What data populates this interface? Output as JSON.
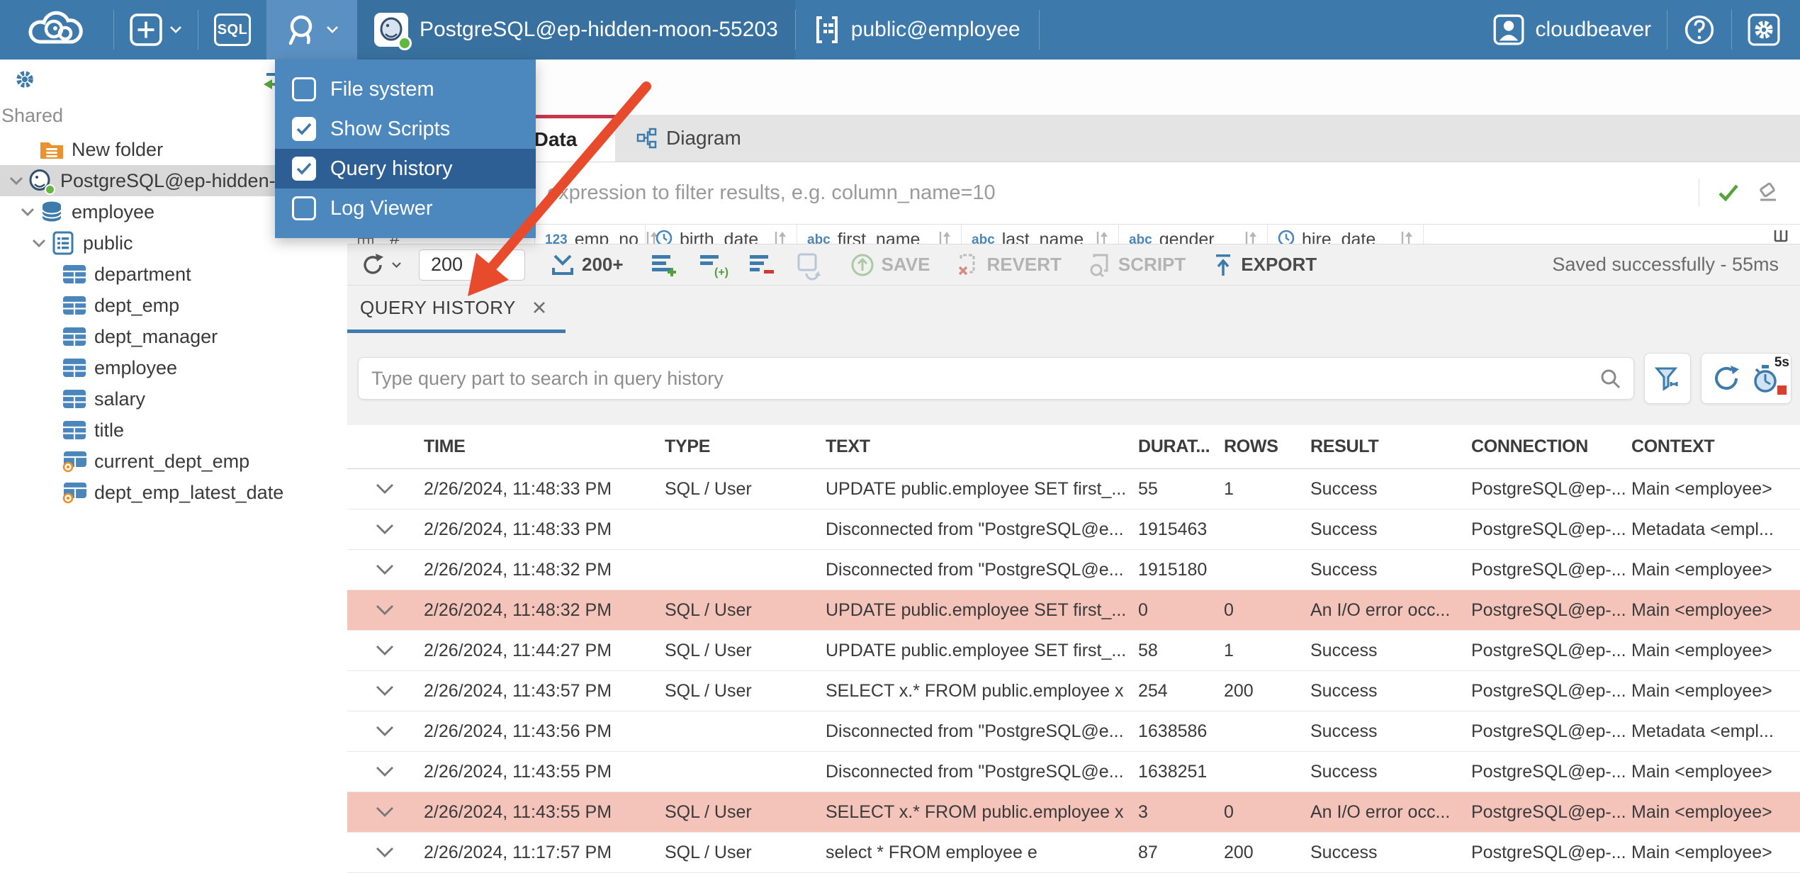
{
  "topbar": {
    "sql_label": "SQL",
    "connection": "PostgreSQL@ep-hidden-moon-55203",
    "schema": "public@employee",
    "user_label": "cloudbeaver"
  },
  "tools_menu": {
    "items": [
      {
        "label": "File system",
        "checked": false,
        "selected": false
      },
      {
        "label": "Show Scripts",
        "checked": true,
        "selected": false
      },
      {
        "label": "Query history",
        "checked": true,
        "selected": true
      },
      {
        "label": "Log Viewer",
        "checked": false,
        "selected": false
      }
    ]
  },
  "sidebar": {
    "section_label": "Shared",
    "tree": [
      {
        "label": "New folder",
        "icon": "folder",
        "level": 1,
        "chevron": false
      },
      {
        "label": "PostgreSQL@ep-hidden-",
        "icon": "postgres",
        "level": 0,
        "chevron": true,
        "selected": true
      },
      {
        "label": "employee",
        "icon": "database",
        "level": 1,
        "chevron": true
      },
      {
        "label": "public",
        "icon": "schema",
        "level": 2,
        "chevron": true
      },
      {
        "label": "department",
        "icon": "table",
        "level": 3,
        "chevron": false
      },
      {
        "label": "dept_emp",
        "icon": "table",
        "level": 3,
        "chevron": false
      },
      {
        "label": "dept_manager",
        "icon": "table",
        "level": 3,
        "chevron": false
      },
      {
        "label": "employee",
        "icon": "table",
        "level": 3,
        "chevron": false
      },
      {
        "label": "salary",
        "icon": "table",
        "level": 3,
        "chevron": false
      },
      {
        "label": "title",
        "icon": "table",
        "level": 3,
        "chevron": false
      },
      {
        "label": "current_dept_emp",
        "icon": "view",
        "level": 3,
        "chevron": false
      },
      {
        "label": "dept_emp_latest_date",
        "icon": "view",
        "level": 3,
        "chevron": false
      }
    ]
  },
  "editor": {
    "tabs": [
      {
        "label": "Data"
      },
      {
        "label": "Diagram"
      }
    ],
    "filter_placeholder": "expression to filter results, e.g. column_name=10",
    "grid": {
      "corner": "#",
      "kind_glyphs": {
        "num": "123",
        "str": "abc",
        "date": ""
      },
      "columns": [
        {
          "kind": "num",
          "label": "emp_no"
        },
        {
          "kind": "date",
          "label": "birth_date"
        },
        {
          "kind": "str",
          "label": "first_name"
        },
        {
          "kind": "str",
          "label": "last_name"
        },
        {
          "kind": "str",
          "label": "gender"
        },
        {
          "kind": "date",
          "label": "hire_date"
        }
      ]
    },
    "toolbar": {
      "row_limit": "200",
      "fetch_label": "200+",
      "save_label": "SAVE",
      "revert_label": "REVERT",
      "script_label": "SCRIPT",
      "export_label": "EXPORT",
      "status": "Saved successfully - 55ms"
    }
  },
  "query_history": {
    "tab_label": "QUERY HISTORY",
    "search_placeholder": "Type query part to search in query history",
    "refresh_interval": "5s",
    "columns": [
      "TIME",
      "TYPE",
      "TEXT",
      "DURAT...",
      "ROWS",
      "RESULT",
      "CONNECTION",
      "CONTEXT"
    ],
    "rows": [
      {
        "time": "2/26/2024, 11:48:33 PM",
        "type": "SQL / User",
        "text": "UPDATE public.employee SET first_...",
        "duration": "55",
        "rows": "1",
        "result": "Success",
        "connection": "PostgreSQL@ep-...",
        "context": "Main <employee>",
        "error": false
      },
      {
        "time": "2/26/2024, 11:48:33 PM",
        "type": "",
        "text": "Disconnected from \"PostgreSQL@e...",
        "duration": "1915463",
        "rows": "",
        "result": "Success",
        "connection": "PostgreSQL@ep-...",
        "context": "Metadata <empl...",
        "error": false
      },
      {
        "time": "2/26/2024, 11:48:32 PM",
        "type": "",
        "text": "Disconnected from \"PostgreSQL@e...",
        "duration": "1915180",
        "rows": "",
        "result": "Success",
        "connection": "PostgreSQL@ep-...",
        "context": "Main <employee>",
        "error": false
      },
      {
        "time": "2/26/2024, 11:48:32 PM",
        "type": "SQL / User",
        "text": "UPDATE public.employee SET first_...",
        "duration": "0",
        "rows": "0",
        "result": "An I/O error occ...",
        "connection": "PostgreSQL@ep-...",
        "context": "Main <employee>",
        "error": true
      },
      {
        "time": "2/26/2024, 11:44:27 PM",
        "type": "SQL / User",
        "text": "UPDATE public.employee SET first_...",
        "duration": "58",
        "rows": "1",
        "result": "Success",
        "connection": "PostgreSQL@ep-...",
        "context": "Main <employee>",
        "error": false
      },
      {
        "time": "2/26/2024, 11:43:57 PM",
        "type": "SQL / User",
        "text": "SELECT x.* FROM public.employee x",
        "duration": "254",
        "rows": "200",
        "result": "Success",
        "connection": "PostgreSQL@ep-...",
        "context": "Main <employee>",
        "error": false
      },
      {
        "time": "2/26/2024, 11:43:56 PM",
        "type": "",
        "text": "Disconnected from \"PostgreSQL@e...",
        "duration": "1638586",
        "rows": "",
        "result": "Success",
        "connection": "PostgreSQL@ep-...",
        "context": "Metadata <empl...",
        "error": false
      },
      {
        "time": "2/26/2024, 11:43:55 PM",
        "type": "",
        "text": "Disconnected from \"PostgreSQL@e...",
        "duration": "1638251",
        "rows": "",
        "result": "Success",
        "connection": "PostgreSQL@ep-...",
        "context": "Main <employee>",
        "error": false
      },
      {
        "time": "2/26/2024, 11:43:55 PM",
        "type": "SQL / User",
        "text": "SELECT x.* FROM public.employee x",
        "duration": "3",
        "rows": "0",
        "result": "An I/O error occ...",
        "connection": "PostgreSQL@ep-...",
        "context": "Main <employee>",
        "error": true
      },
      {
        "time": "2/26/2024, 11:17:57 PM",
        "type": "SQL / User",
        "text": "select * FROM employee e",
        "duration": "87",
        "rows": "200",
        "result": "Success",
        "connection": "PostgreSQL@ep-...",
        "context": "Main <employee>",
        "error": false
      }
    ]
  },
  "colors": {
    "topbar": "#3e79ab",
    "menu": "#4c87be",
    "menu_selected": "#2d5f94",
    "accent_red": "#c4394e",
    "arrow": "#e84b2c",
    "error_row": "#f4c3b9",
    "blue_icon": "#3d7bad"
  }
}
